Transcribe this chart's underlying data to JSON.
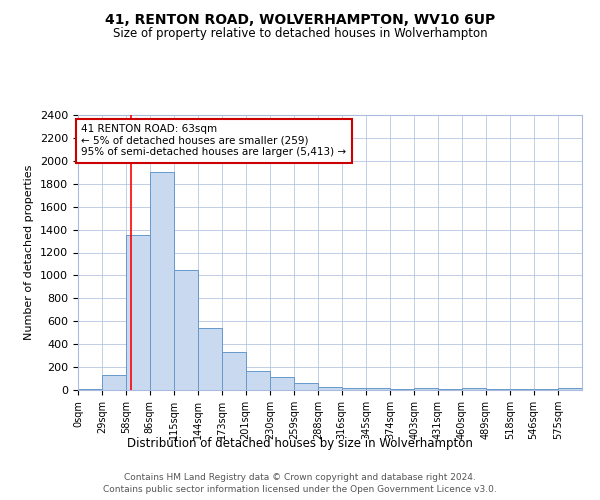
{
  "title": "41, RENTON ROAD, WOLVERHAMPTON, WV10 6UP",
  "subtitle": "Size of property relative to detached houses in Wolverhampton",
  "xlabel": "Distribution of detached houses by size in Wolverhampton",
  "ylabel": "Number of detached properties",
  "bin_labels": [
    "0sqm",
    "29sqm",
    "58sqm",
    "86sqm",
    "115sqm",
    "144sqm",
    "173sqm",
    "201sqm",
    "230sqm",
    "259sqm",
    "288sqm",
    "316sqm",
    "345sqm",
    "374sqm",
    "403sqm",
    "431sqm",
    "460sqm",
    "489sqm",
    "518sqm",
    "546sqm",
    "575sqm"
  ],
  "bin_edges": [
    0,
    29,
    58,
    86,
    115,
    144,
    173,
    201,
    230,
    259,
    288,
    316,
    345,
    374,
    403,
    431,
    460,
    489,
    518,
    546,
    575
  ],
  "bar_values": [
    10,
    130,
    1350,
    1900,
    1050,
    540,
    335,
    170,
    110,
    65,
    30,
    20,
    15,
    10,
    15,
    5,
    20,
    5,
    5,
    5,
    20
  ],
  "bar_color": "#c9d9f0",
  "bar_edge_color": "#6699cc",
  "red_line_x": 63,
  "annotation_text": "41 RENTON ROAD: 63sqm\n← 5% of detached houses are smaller (259)\n95% of semi-detached houses are larger (5,413) →",
  "annotation_box_color": "#ffffff",
  "annotation_box_edge": "#cc0000",
  "ylim": [
    0,
    2400
  ],
  "yticks": [
    0,
    200,
    400,
    600,
    800,
    1000,
    1200,
    1400,
    1600,
    1800,
    2000,
    2200,
    2400
  ],
  "footnote1": "Contains HM Land Registry data © Crown copyright and database right 2024.",
  "footnote2": "Contains public sector information licensed under the Open Government Licence v3.0.",
  "bg_color": "#ffffff",
  "grid_color": "#aabbdd",
  "last_bin_edge": 604
}
